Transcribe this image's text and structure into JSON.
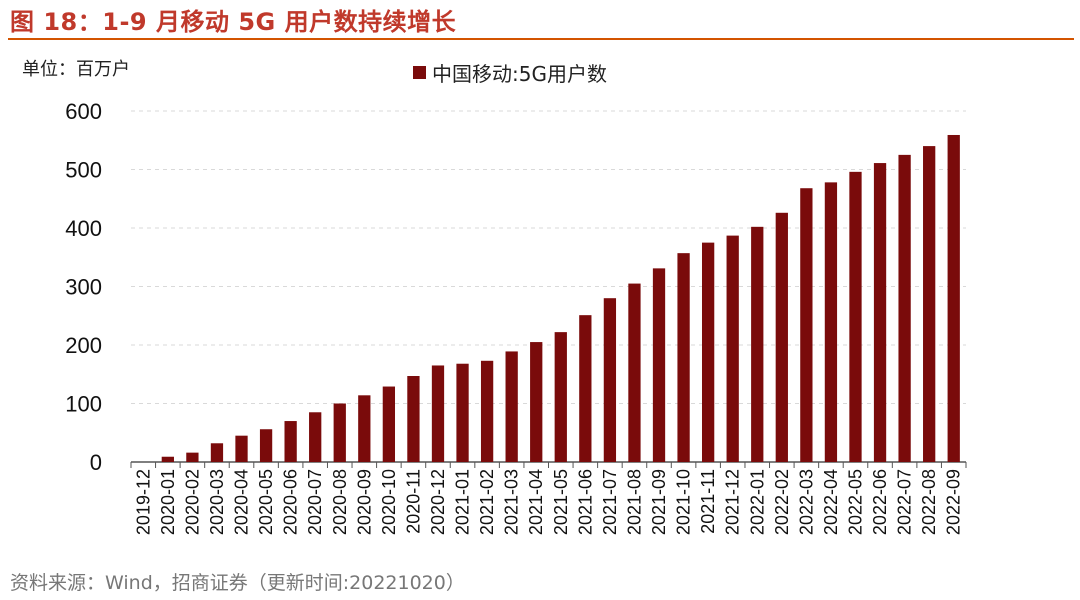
{
  "header": {
    "title": "图 18：1-9 月移动 5G 用户数持续增长"
  },
  "colors": {
    "title": "#c0392b",
    "rule": "#d35400",
    "bar": "#7a0b0b"
  },
  "chart_data": {
    "type": "bar",
    "unit": "单位：百万户",
    "legend": "中国移动:5G用户数",
    "legend_position": "top-center",
    "ylim": [
      0,
      600
    ],
    "yticks": [
      0,
      100,
      200,
      300,
      400,
      500,
      600
    ],
    "grid": true,
    "categories": [
      "2019-12",
      "2020-01",
      "2020-02",
      "2020-03",
      "2020-04",
      "2020-05",
      "2020-06",
      "2020-07",
      "2020-08",
      "2020-09",
      "2020-10",
      "2020-11",
      "2020-12",
      "2021-01",
      "2021-02",
      "2021-03",
      "2021-04",
      "2021-05",
      "2021-06",
      "2021-07",
      "2021-08",
      "2021-09",
      "2021-10",
      "2021-11",
      "2021-12",
      "2022-01",
      "2022-02",
      "2022-03",
      "2022-04",
      "2022-05",
      "2022-06",
      "2022-07",
      "2022-08",
      "2022-09"
    ],
    "series": [
      {
        "name": "中国移动:5G用户数",
        "values": [
          0,
          9,
          16,
          32,
          45,
          56,
          70,
          85,
          100,
          114,
          129,
          147,
          165,
          168,
          173,
          189,
          205,
          222,
          251,
          280,
          305,
          331,
          357,
          375,
          387,
          402,
          426,
          468,
          478,
          496,
          511,
          525,
          540,
          559
        ]
      }
    ]
  },
  "footer": {
    "source": "资料来源：Wind，招商证券（更新时间:20221020）"
  }
}
